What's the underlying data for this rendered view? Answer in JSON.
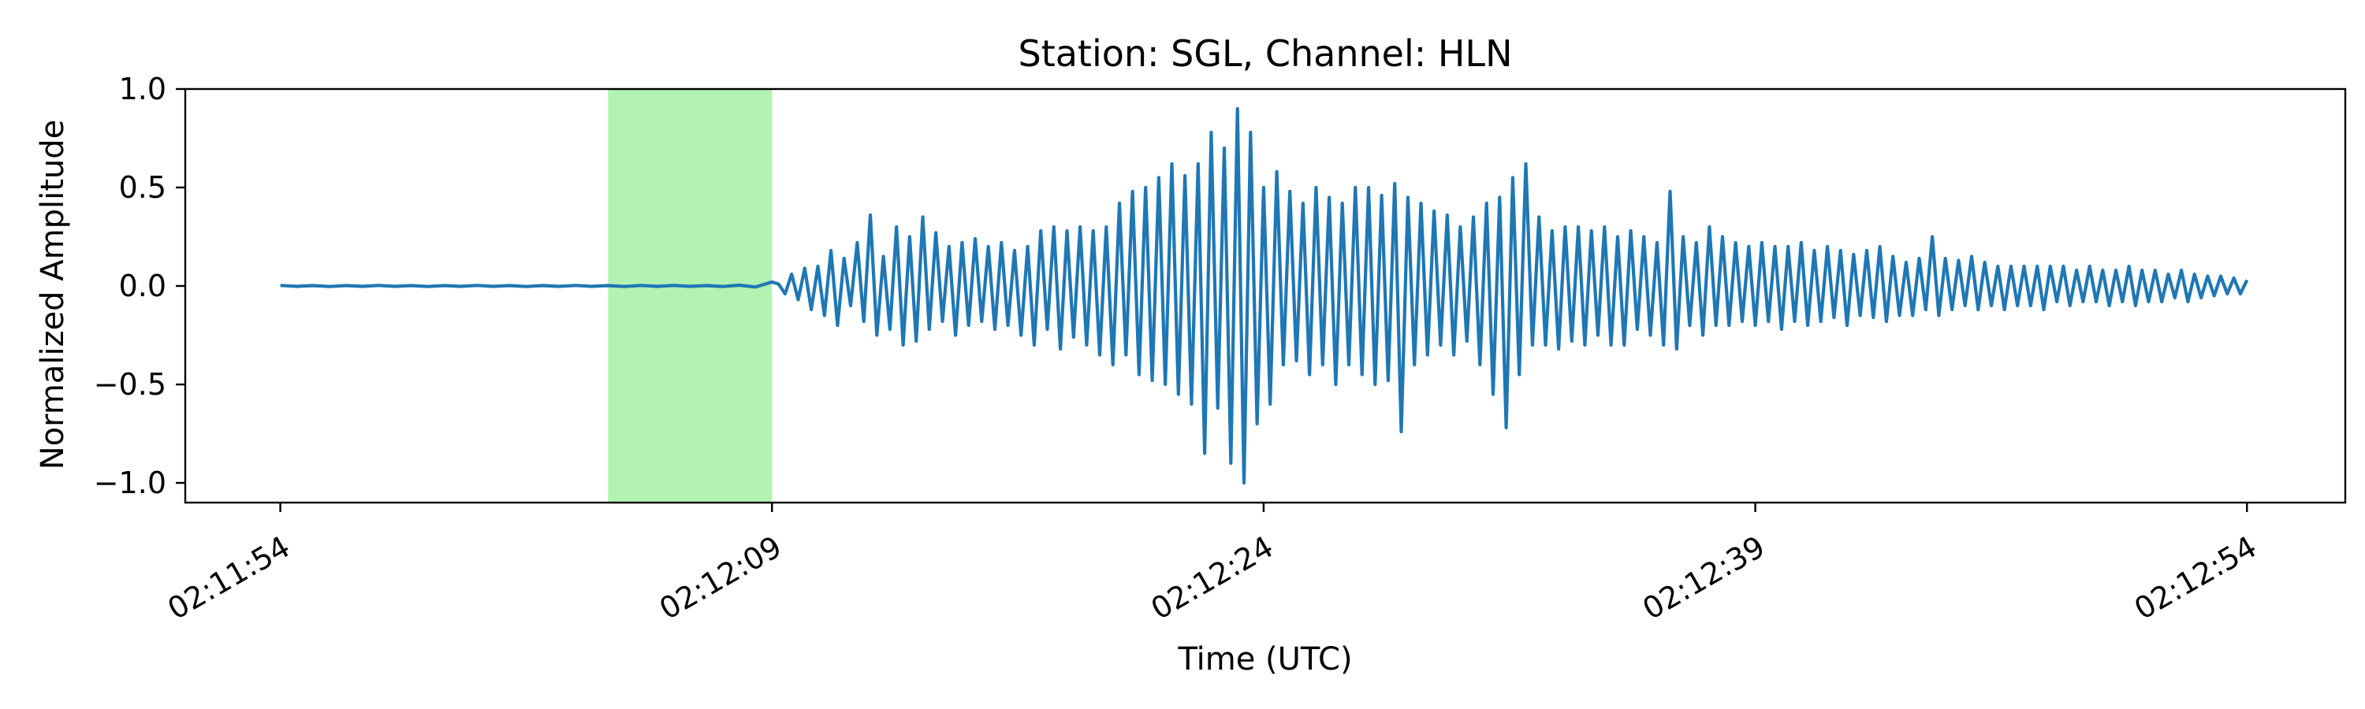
{
  "chart_data": {
    "type": "line",
    "title": "Station: SGL, Channel: HLN",
    "xlabel": "Time (UTC)",
    "ylabel": "Normalized Amplitude",
    "xlim_seconds_rel": [
      -2.9,
      63.0
    ],
    "ylim": [
      -1.1,
      1.0
    ],
    "x_ticks": [
      {
        "t": 0,
        "label": "02:11:54"
      },
      {
        "t": 15,
        "label": "02:12:09"
      },
      {
        "t": 30,
        "label": "02:12:24"
      },
      {
        "t": 45,
        "label": "02:12:39"
      },
      {
        "t": 60,
        "label": "02:12:54"
      }
    ],
    "y_ticks": [
      {
        "v": 1.0,
        "label": "1.0"
      },
      {
        "v": 0.5,
        "label": "0.5"
      },
      {
        "v": 0.0,
        "label": "0.0"
      },
      {
        "v": -0.5,
        "label": "−0.5"
      },
      {
        "v": -1.0,
        "label": "−1.0"
      }
    ],
    "highlight_window": {
      "start": "02:12:04",
      "end": "02:12:09",
      "color": "#b2f2b2"
    },
    "series": [
      {
        "color": "#1f77b4",
        "x_start": "02:11:54",
        "x_end": "02:12:54",
        "samples": [
          [
            0.0,
            0.003
          ],
          [
            0.5,
            -0.002
          ],
          [
            1.0,
            0.002
          ],
          [
            1.5,
            -0.003
          ],
          [
            2.0,
            0.002
          ],
          [
            2.5,
            -0.002
          ],
          [
            3.0,
            0.003
          ],
          [
            3.5,
            -0.002
          ],
          [
            4.0,
            0.002
          ],
          [
            4.5,
            -0.003
          ],
          [
            5.0,
            0.002
          ],
          [
            5.5,
            -0.002
          ],
          [
            6.0,
            0.003
          ],
          [
            6.5,
            -0.002
          ],
          [
            7.0,
            0.002
          ],
          [
            7.5,
            -0.003
          ],
          [
            8.0,
            0.002
          ],
          [
            8.5,
            -0.002
          ],
          [
            9.0,
            0.003
          ],
          [
            9.5,
            -0.002
          ],
          [
            10.0,
            0.002
          ],
          [
            10.5,
            -0.003
          ],
          [
            11.0,
            0.003
          ],
          [
            11.5,
            -0.002
          ],
          [
            12.0,
            0.003
          ],
          [
            12.5,
            -0.002
          ],
          [
            13.0,
            0.002
          ],
          [
            13.5,
            -0.003
          ],
          [
            14.0,
            0.004
          ],
          [
            14.5,
            -0.005
          ],
          [
            15.0,
            0.02
          ],
          [
            15.2,
            0.01
          ],
          [
            15.4,
            -0.04
          ],
          [
            15.6,
            0.06
          ],
          [
            15.8,
            -0.07
          ],
          [
            16.0,
            0.09
          ],
          [
            16.2,
            -0.12
          ],
          [
            16.4,
            0.1
          ],
          [
            16.6,
            -0.15
          ],
          [
            16.8,
            0.18
          ],
          [
            17.0,
            -0.2
          ],
          [
            17.2,
            0.14
          ],
          [
            17.4,
            -0.1
          ],
          [
            17.6,
            0.22
          ],
          [
            17.8,
            -0.18
          ],
          [
            18.0,
            0.36
          ],
          [
            18.2,
            -0.25
          ],
          [
            18.4,
            0.15
          ],
          [
            18.6,
            -0.22
          ],
          [
            18.8,
            0.3
          ],
          [
            19.0,
            -0.3
          ],
          [
            19.2,
            0.25
          ],
          [
            19.4,
            -0.28
          ],
          [
            19.6,
            0.35
          ],
          [
            19.8,
            -0.22
          ],
          [
            20.0,
            0.27
          ],
          [
            20.2,
            -0.18
          ],
          [
            20.4,
            0.2
          ],
          [
            20.6,
            -0.25
          ],
          [
            20.8,
            0.22
          ],
          [
            21.0,
            -0.2
          ],
          [
            21.2,
            0.24
          ],
          [
            21.4,
            -0.18
          ],
          [
            21.6,
            0.2
          ],
          [
            21.8,
            -0.22
          ],
          [
            22.0,
            0.22
          ],
          [
            22.2,
            -0.2
          ],
          [
            22.4,
            0.18
          ],
          [
            22.6,
            -0.25
          ],
          [
            22.8,
            0.2
          ],
          [
            23.0,
            -0.3
          ],
          [
            23.2,
            0.28
          ],
          [
            23.4,
            -0.22
          ],
          [
            23.6,
            0.3
          ],
          [
            23.8,
            -0.32
          ],
          [
            24.0,
            0.28
          ],
          [
            24.2,
            -0.26
          ],
          [
            24.4,
            0.3
          ],
          [
            24.6,
            -0.3
          ],
          [
            24.8,
            0.28
          ],
          [
            25.0,
            -0.35
          ],
          [
            25.2,
            0.3
          ],
          [
            25.4,
            -0.4
          ],
          [
            25.6,
            0.42
          ],
          [
            25.8,
            -0.35
          ],
          [
            26.0,
            0.48
          ],
          [
            26.2,
            -0.45
          ],
          [
            26.4,
            0.5
          ],
          [
            26.6,
            -0.48
          ],
          [
            26.8,
            0.55
          ],
          [
            27.0,
            -0.5
          ],
          [
            27.2,
            0.62
          ],
          [
            27.4,
            -0.55
          ],
          [
            27.6,
            0.56
          ],
          [
            27.8,
            -0.6
          ],
          [
            28.0,
            0.62
          ],
          [
            28.2,
            -0.85
          ],
          [
            28.4,
            0.78
          ],
          [
            28.6,
            -0.62
          ],
          [
            28.8,
            0.7
          ],
          [
            29.0,
            -0.9
          ],
          [
            29.2,
            0.9
          ],
          [
            29.4,
            -1.0
          ],
          [
            29.6,
            0.78
          ],
          [
            29.8,
            -0.7
          ],
          [
            30.0,
            0.5
          ],
          [
            30.2,
            -0.6
          ],
          [
            30.4,
            0.58
          ],
          [
            30.6,
            -0.4
          ],
          [
            30.8,
            0.48
          ],
          [
            31.0,
            -0.38
          ],
          [
            31.2,
            0.42
          ],
          [
            31.4,
            -0.45
          ],
          [
            31.6,
            0.5
          ],
          [
            31.8,
            -0.4
          ],
          [
            32.0,
            0.45
          ],
          [
            32.2,
            -0.5
          ],
          [
            32.4,
            0.42
          ],
          [
            32.6,
            -0.4
          ],
          [
            32.8,
            0.5
          ],
          [
            33.0,
            -0.45
          ],
          [
            33.2,
            0.5
          ],
          [
            33.4,
            -0.5
          ],
          [
            33.6,
            0.46
          ],
          [
            33.8,
            -0.48
          ],
          [
            34.0,
            0.52
          ],
          [
            34.2,
            -0.74
          ],
          [
            34.4,
            0.45
          ],
          [
            34.6,
            -0.4
          ],
          [
            34.8,
            0.42
          ],
          [
            35.0,
            -0.35
          ],
          [
            35.2,
            0.38
          ],
          [
            35.4,
            -0.3
          ],
          [
            35.6,
            0.36
          ],
          [
            35.8,
            -0.35
          ],
          [
            36.0,
            0.3
          ],
          [
            36.2,
            -0.28
          ],
          [
            36.4,
            0.35
          ],
          [
            36.6,
            -0.4
          ],
          [
            36.8,
            0.42
          ],
          [
            37.0,
            -0.55
          ],
          [
            37.2,
            0.45
          ],
          [
            37.4,
            -0.72
          ],
          [
            37.6,
            0.55
          ],
          [
            37.8,
            -0.45
          ],
          [
            38.0,
            0.62
          ],
          [
            38.2,
            -0.3
          ],
          [
            38.4,
            0.35
          ],
          [
            38.6,
            -0.3
          ],
          [
            38.8,
            0.28
          ],
          [
            39.0,
            -0.32
          ],
          [
            39.2,
            0.3
          ],
          [
            39.4,
            -0.28
          ],
          [
            39.6,
            0.3
          ],
          [
            39.8,
            -0.3
          ],
          [
            40.0,
            0.28
          ],
          [
            40.2,
            -0.25
          ],
          [
            40.4,
            0.3
          ],
          [
            40.6,
            -0.3
          ],
          [
            40.8,
            0.25
          ],
          [
            41.0,
            -0.3
          ],
          [
            41.2,
            0.28
          ],
          [
            41.4,
            -0.22
          ],
          [
            41.6,
            0.25
          ],
          [
            41.8,
            -0.25
          ],
          [
            42.0,
            0.22
          ],
          [
            42.2,
            -0.3
          ],
          [
            42.4,
            0.48
          ],
          [
            42.6,
            -0.32
          ],
          [
            42.8,
            0.25
          ],
          [
            43.0,
            -0.2
          ],
          [
            43.2,
            0.22
          ],
          [
            43.4,
            -0.25
          ],
          [
            43.6,
            0.3
          ],
          [
            43.8,
            -0.2
          ],
          [
            44.0,
            0.25
          ],
          [
            44.2,
            -0.2
          ],
          [
            44.4,
            0.22
          ],
          [
            44.6,
            -0.18
          ],
          [
            44.8,
            0.2
          ],
          [
            45.0,
            -0.2
          ],
          [
            45.2,
            0.22
          ],
          [
            45.4,
            -0.18
          ],
          [
            45.6,
            0.2
          ],
          [
            45.8,
            -0.22
          ],
          [
            46.0,
            0.2
          ],
          [
            46.2,
            -0.18
          ],
          [
            46.4,
            0.22
          ],
          [
            46.6,
            -0.2
          ],
          [
            46.8,
            0.18
          ],
          [
            47.0,
            -0.18
          ],
          [
            47.2,
            0.2
          ],
          [
            47.4,
            -0.16
          ],
          [
            47.6,
            0.18
          ],
          [
            47.8,
            -0.2
          ],
          [
            48.0,
            0.16
          ],
          [
            48.2,
            -0.15
          ],
          [
            48.4,
            0.18
          ],
          [
            48.6,
            -0.16
          ],
          [
            48.8,
            0.2
          ],
          [
            49.0,
            -0.18
          ],
          [
            49.2,
            0.15
          ],
          [
            49.4,
            -0.15
          ],
          [
            49.6,
            0.12
          ],
          [
            49.8,
            -0.15
          ],
          [
            50.0,
            0.14
          ],
          [
            50.2,
            -0.12
          ],
          [
            50.4,
            0.25
          ],
          [
            50.6,
            -0.15
          ],
          [
            50.8,
            0.14
          ],
          [
            51.0,
            -0.12
          ],
          [
            51.2,
            0.13
          ],
          [
            51.4,
            -0.1
          ],
          [
            51.6,
            0.15
          ],
          [
            51.8,
            -0.12
          ],
          [
            52.0,
            0.12
          ],
          [
            52.2,
            -0.1
          ],
          [
            52.4,
            0.1
          ],
          [
            52.6,
            -0.12
          ],
          [
            52.8,
            0.1
          ],
          [
            53.0,
            -0.1
          ],
          [
            53.2,
            0.1
          ],
          [
            53.4,
            -0.1
          ],
          [
            53.6,
            0.1
          ],
          [
            53.8,
            -0.12
          ],
          [
            54.0,
            0.1
          ],
          [
            54.2,
            -0.08
          ],
          [
            54.4,
            0.1
          ],
          [
            54.6,
            -0.1
          ],
          [
            54.8,
            0.08
          ],
          [
            55.0,
            -0.08
          ],
          [
            55.2,
            0.1
          ],
          [
            55.4,
            -0.08
          ],
          [
            55.6,
            0.08
          ],
          [
            55.8,
            -0.1
          ],
          [
            56.0,
            0.08
          ],
          [
            56.2,
            -0.08
          ],
          [
            56.4,
            0.1
          ],
          [
            56.6,
            -0.1
          ],
          [
            56.8,
            0.08
          ],
          [
            57.0,
            -0.08
          ],
          [
            57.2,
            0.08
          ],
          [
            57.4,
            -0.08
          ],
          [
            57.6,
            0.06
          ],
          [
            57.8,
            -0.06
          ],
          [
            58.0,
            0.08
          ],
          [
            58.2,
            -0.08
          ],
          [
            58.4,
            0.06
          ],
          [
            58.6,
            -0.06
          ],
          [
            58.8,
            0.05
          ],
          [
            59.0,
            -0.05
          ],
          [
            59.2,
            0.05
          ],
          [
            59.4,
            -0.04
          ],
          [
            59.6,
            0.04
          ],
          [
            59.8,
            -0.04
          ],
          [
            60.0,
            0.03
          ]
        ]
      }
    ]
  }
}
